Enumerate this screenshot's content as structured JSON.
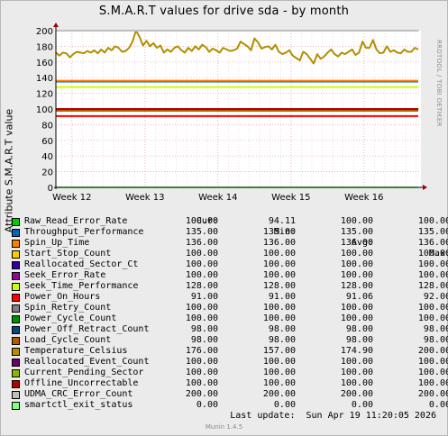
{
  "title": "S.M.A.R.T values for drive sda - by month",
  "credit": "RRDTOOL / TOBI OETIKER",
  "last_update": "Last update:  Sun Apr 19 11:20:05 2026",
  "munin_version": "Munin 1.4.5",
  "legend_headers": {
    "cur": "Cur:",
    "min": "Min:",
    "avg": "Avg:",
    "max": "Max:"
  },
  "chart_data": {
    "type": "line",
    "title": "S.M.A.R.T values for drive sda - by month",
    "xlabel": "",
    "ylabel": "Attribute S.M.A.R.T value",
    "ylim": [
      0,
      200
    ],
    "yticks": [
      0,
      20,
      40,
      60,
      80,
      100,
      120,
      140,
      160,
      180,
      200
    ],
    "xlim_weeks": [
      11.78,
      16.78
    ],
    "xticks": [
      {
        "label": "Week 12",
        "x": 12
      },
      {
        "label": "Week 13",
        "x": 13
      },
      {
        "label": "Week 14",
        "x": 14
      },
      {
        "label": "Week 15",
        "x": 15
      },
      {
        "label": "Week 16",
        "x": 16
      }
    ],
    "grid": true,
    "legend_position": "bottom",
    "series": [
      {
        "name": "Raw_Read_Error_Rate",
        "color": "#00cc00",
        "cur": "100.00",
        "min": "94.11",
        "avg": "100.00",
        "max": "100.00",
        "level": 100
      },
      {
        "name": "Throughput_Performance",
        "color": "#0066b3",
        "cur": "135.00",
        "min": "135.00",
        "avg": "135.00",
        "max": "135.00",
        "level": 135
      },
      {
        "name": "Spin_Up_Time",
        "color": "#ff8000",
        "cur": "136.00",
        "min": "136.00",
        "avg": "136.00",
        "max": "136.00",
        "level": 136
      },
      {
        "name": "Start_Stop_Count",
        "color": "#ffcc00",
        "cur": "100.00",
        "min": "100.00",
        "avg": "100.00",
        "max": "100.00",
        "level": 100
      },
      {
        "name": "Reallocated_Sector_Ct",
        "color": "#330099",
        "cur": "100.00",
        "min": "100.00",
        "avg": "100.00",
        "max": "100.00",
        "level": 100
      },
      {
        "name": "Seek_Error_Rate",
        "color": "#990099",
        "cur": "100.00",
        "min": "100.00",
        "avg": "100.00",
        "max": "100.00",
        "level": 100
      },
      {
        "name": "Seek_Time_Performance",
        "color": "#ccff00",
        "cur": "128.00",
        "min": "128.00",
        "avg": "128.00",
        "max": "128.00",
        "level": 128
      },
      {
        "name": "Power_On_Hours",
        "color": "#ff0000",
        "cur": "91.00",
        "min": "91.00",
        "avg": "91.06",
        "max": "92.00",
        "level": 91
      },
      {
        "name": "Spin_Retry_Count",
        "color": "#808080",
        "cur": "100.00",
        "min": "100.00",
        "avg": "100.00",
        "max": "100.00",
        "level": 100
      },
      {
        "name": "Power_Cycle_Count",
        "color": "#008f00",
        "cur": "100.00",
        "min": "100.00",
        "avg": "100.00",
        "max": "100.00",
        "level": 100
      },
      {
        "name": "Power_Off_Retract_Count",
        "color": "#00487d",
        "cur": "98.00",
        "min": "98.00",
        "avg": "98.00",
        "max": "98.00",
        "level": 98
      },
      {
        "name": "Load_Cycle_Count",
        "color": "#b35a00",
        "cur": "98.00",
        "min": "98.00",
        "avg": "98.00",
        "max": "98.00",
        "level": 98
      },
      {
        "name": "Temperature_Celsius",
        "color": "#b38f00",
        "cur": "176.00",
        "min": "157.00",
        "avg": "174.90",
        "max": "200.00",
        "values": [
          172,
          168,
          172,
          171,
          166,
          170,
          173,
          172,
          171,
          174,
          172,
          175,
          171,
          176,
          172,
          178,
          175,
          180,
          178,
          173,
          174,
          178,
          186,
          200,
          192,
          181,
          187,
          180,
          184,
          178,
          181,
          172,
          176,
          173,
          178,
          180,
          175,
          172,
          178,
          174,
          180,
          176,
          182,
          179,
          173,
          177,
          175,
          172,
          178,
          176,
          174,
          175,
          177,
          186,
          183,
          180,
          175,
          190,
          185,
          177,
          179,
          180,
          176,
          182,
          173,
          170,
          172,
          175,
          168,
          165,
          162,
          173,
          170,
          164,
          158,
          170,
          164,
          167,
          172,
          176,
          170,
          167,
          172,
          170,
          173,
          176,
          169,
          172,
          186,
          178,
          178,
          188,
          176,
          171,
          172,
          180,
          173,
          175,
          172,
          171,
          176,
          173,
          173,
          178,
          176
        ]
      },
      {
        "name": "Reallocated_Event_Count",
        "color": "#6b006b",
        "cur": "100.00",
        "min": "100.00",
        "avg": "100.00",
        "max": "100.00",
        "level": 100
      },
      {
        "name": "Current_Pending_Sector",
        "color": "#8fb300",
        "cur": "100.00",
        "min": "100.00",
        "avg": "100.00",
        "max": "100.00",
        "level": 100
      },
      {
        "name": "Offline_Uncorrectable",
        "color": "#b30000",
        "cur": "100.00",
        "min": "100.00",
        "avg": "100.00",
        "max": "100.00",
        "level": 100
      },
      {
        "name": "UDMA_CRC_Error_Count",
        "color": "#bebebe",
        "cur": "200.00",
        "min": "200.00",
        "avg": "200.00",
        "max": "200.00",
        "level": 200
      },
      {
        "name": "smartctl_exit_status",
        "color": "#80ff80",
        "cur": "0.00",
        "min": "0.00",
        "avg": "0.00",
        "max": "0.00",
        "level": 0
      }
    ]
  }
}
